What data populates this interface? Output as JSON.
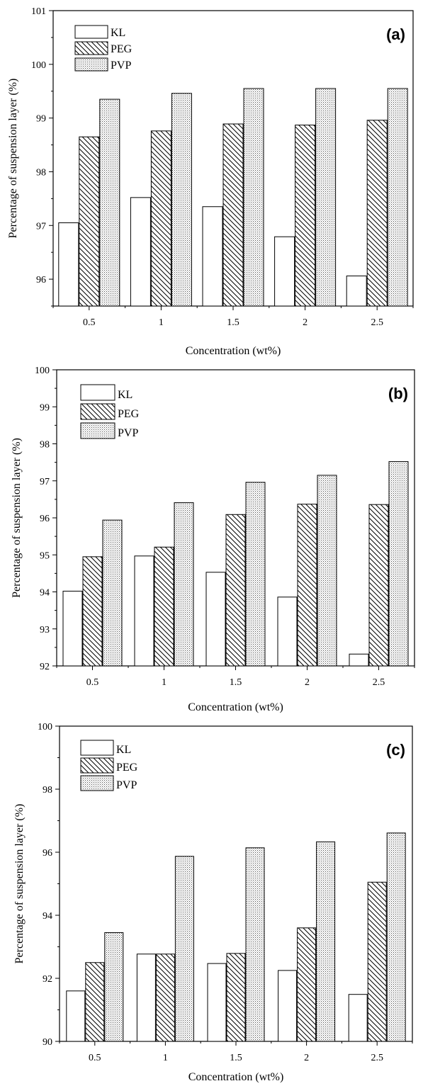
{
  "chart_data": [
    {
      "type": "bar",
      "panel_label": "(a)",
      "xlabel": "Concentration (wt%)",
      "ylabel": "Percentage of suspension layer (%)",
      "categories": [
        "0.5",
        "1",
        "1.5",
        "2",
        "2.5"
      ],
      "ylim": [
        95.5,
        101
      ],
      "yticks": [
        "96",
        "97",
        "98",
        "99",
        "100",
        "101"
      ],
      "legend_position": "top-left",
      "series": [
        {
          "name": "KL",
          "pattern": "blank",
          "values": [
            97.05,
            97.52,
            97.35,
            96.79,
            96.06
          ]
        },
        {
          "name": "PEG",
          "pattern": "diagonal-hatch",
          "values": [
            98.65,
            98.76,
            98.89,
            98.87,
            98.96
          ]
        },
        {
          "name": "PVP",
          "pattern": "dotted",
          "values": [
            99.35,
            99.46,
            99.55,
            99.55,
            99.55
          ]
        }
      ]
    },
    {
      "type": "bar",
      "panel_label": "(b)",
      "xlabel": "Concentration (wt%)",
      "ylabel": "Percentage of suspension layer (%)",
      "categories": [
        "0.5",
        "1",
        "1.5",
        "2",
        "2.5"
      ],
      "ylim": [
        92,
        100
      ],
      "yticks": [
        "92",
        "93",
        "94",
        "95",
        "96",
        "97",
        "98",
        "99",
        "100"
      ],
      "legend_position": "top-left",
      "series": [
        {
          "name": "KL",
          "pattern": "blank",
          "values": [
            94.02,
            94.97,
            94.53,
            93.86,
            92.32
          ]
        },
        {
          "name": "PEG",
          "pattern": "diagonal-hatch",
          "values": [
            94.95,
            95.21,
            96.09,
            96.37,
            96.36
          ]
        },
        {
          "name": "PVP",
          "pattern": "dotted",
          "values": [
            95.94,
            96.41,
            96.96,
            97.15,
            97.52
          ]
        }
      ]
    },
    {
      "type": "bar",
      "panel_label": "(c)",
      "xlabel": "Concentration (wt%)",
      "ylabel": "Percentage of suspension layer (%)",
      "categories": [
        "0.5",
        "1",
        "1.5",
        "2",
        "2.5"
      ],
      "ylim": [
        90,
        100
      ],
      "yticks": [
        "90",
        "92",
        "94",
        "96",
        "98",
        "100"
      ],
      "legend_position": "top-left",
      "series": [
        {
          "name": "KL",
          "pattern": "blank",
          "values": [
            91.6,
            92.77,
            92.47,
            92.25,
            91.49
          ]
        },
        {
          "name": "PEG",
          "pattern": "diagonal-hatch",
          "values": [
            92.5,
            92.77,
            92.79,
            93.6,
            95.05
          ]
        },
        {
          "name": "PVP",
          "pattern": "dotted",
          "values": [
            93.45,
            95.87,
            96.14,
            96.33,
            96.61
          ]
        }
      ]
    }
  ]
}
